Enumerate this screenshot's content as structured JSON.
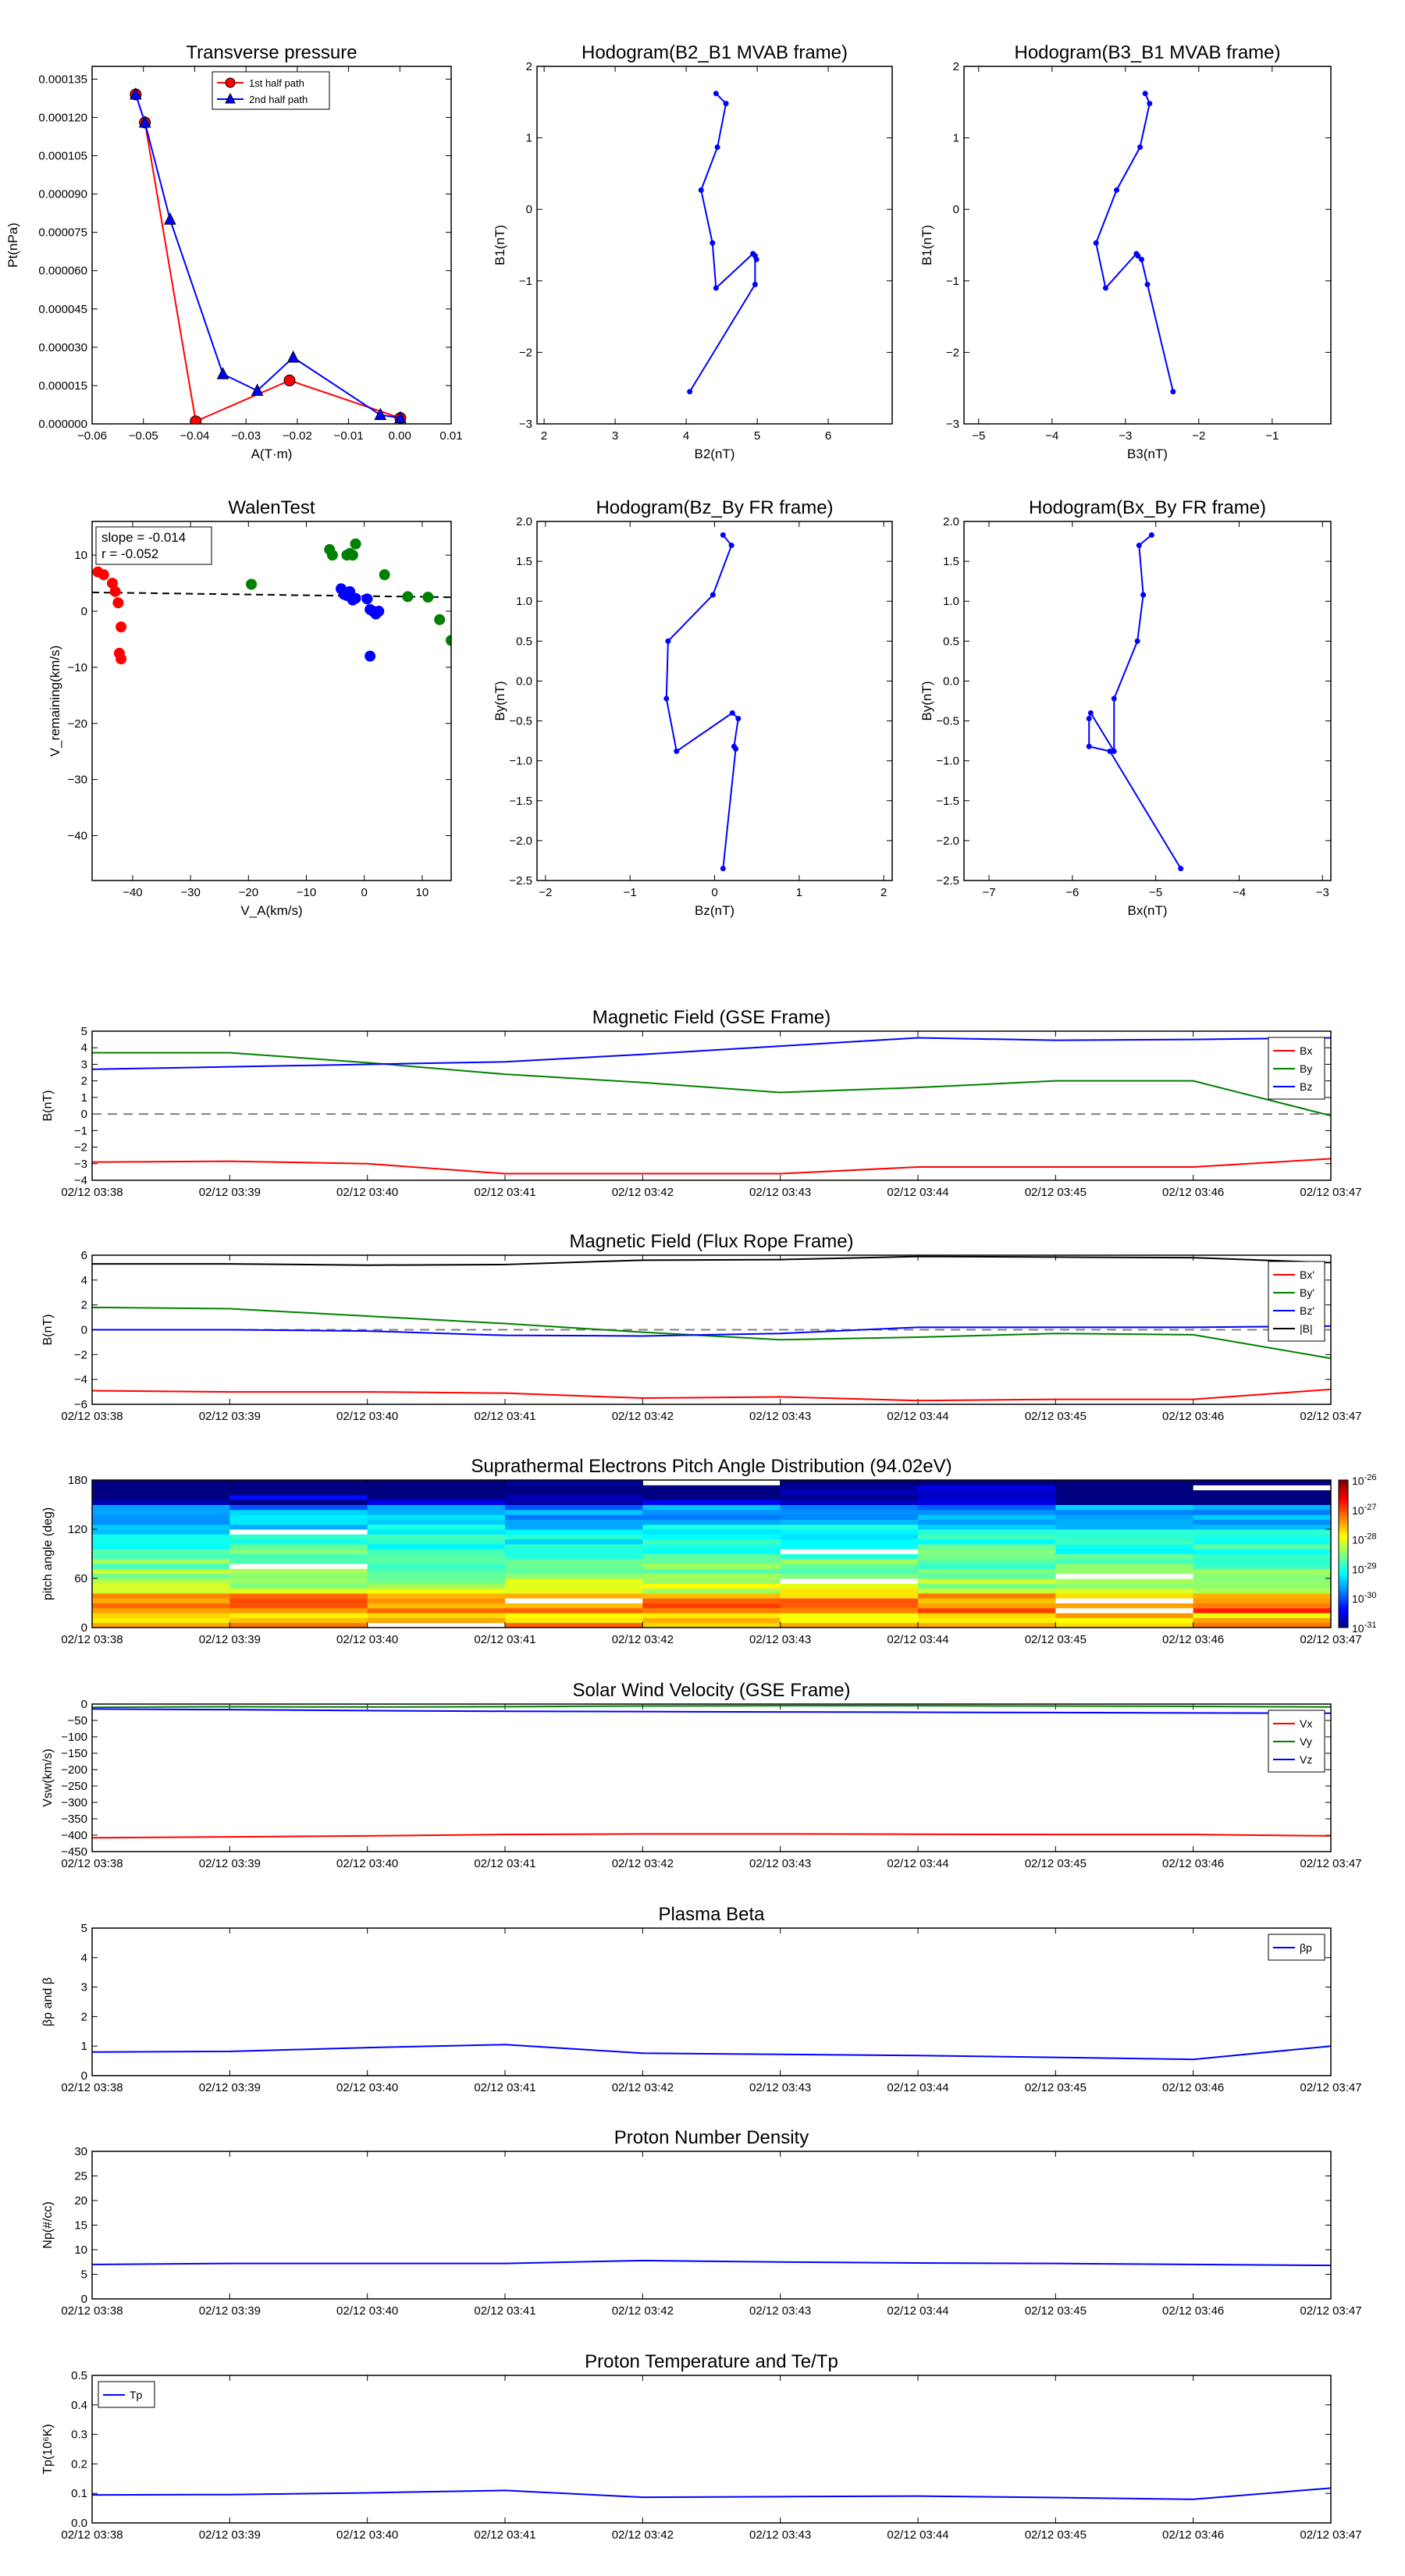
{
  "colors": {
    "red": "#ff0000",
    "green": "#008000",
    "blue": "#0000ff",
    "black": "#000000",
    "grey": "#808080"
  },
  "time_ticks": [
    "02/12 03:38",
    "02/12 03:39",
    "02/12 03:40",
    "02/12 03:41",
    "02/12 03:42",
    "02/12 03:43",
    "02/12 03:44",
    "02/12 03:45",
    "02/12 03:46",
    "02/12 03:47"
  ],
  "chart_data": [
    {
      "id": "pt",
      "type": "line",
      "title": "Transverse pressure",
      "xlabel": "A(T·m)",
      "ylabel": "Pt(nPa)",
      "xlim": [
        -0.06,
        0.01
      ],
      "ylim": [
        0,
        0.00014
      ],
      "xticks": [
        -0.06,
        -0.05,
        -0.04,
        -0.03,
        -0.02,
        -0.01,
        0.0,
        0.01
      ],
      "xtick_labels": [
        "−0.06",
        "−0.05",
        "−0.04",
        "−0.03",
        "−0.02",
        "−0.01",
        "0.00",
        "0.01"
      ],
      "yticks": [
        0,
        1.5e-05,
        3e-05,
        4.5e-05,
        6e-05,
        7.5e-05,
        9e-05,
        0.000105,
        0.00012,
        0.000135
      ],
      "ytick_labels": [
        "0.000000",
        "0.000015",
        "0.000030",
        "0.000045",
        "0.000060",
        "0.000075",
        "0.000090",
        "0.000105",
        "0.000120",
        "0.000135"
      ],
      "legend": "top-center",
      "series": [
        {
          "name": "1st half path",
          "color": "red",
          "marker": "circle",
          "x": [
            -0.0515,
            -0.0497,
            -0.0398,
            -0.0215,
            0.0001
          ],
          "y": [
            0.000129,
            0.000118,
            1e-06,
            1.7e-05,
            2.3e-06
          ]
        },
        {
          "name": "2nd half path",
          "color": "blue",
          "marker": "triangle",
          "x": [
            -0.0515,
            -0.0497,
            -0.0448,
            -0.0345,
            -0.0278,
            -0.0208,
            -0.0038,
            0.0001
          ],
          "y": [
            0.000129,
            0.000118,
            8e-05,
            1.95e-05,
            1.3e-05,
            2.6e-05,
            3.5e-06,
            2.3e-06
          ]
        }
      ]
    },
    {
      "id": "hodo1",
      "type": "line",
      "title": "Hodogram(B2_B1 MVAB frame)",
      "xlabel": "B2(nT)",
      "ylabel": "B1(nT)",
      "xlim": [
        1.9,
        6.9
      ],
      "ylim": [
        -3,
        2
      ],
      "xticks": [
        2,
        3,
        4,
        5,
        6
      ],
      "xtick_labels": [
        "2",
        "3",
        "4",
        "5",
        "6"
      ],
      "yticks": [
        -3,
        -2,
        -1,
        0,
        1,
        2
      ],
      "ytick_labels": [
        "−3",
        "−2",
        "−1",
        "0",
        "1",
        "2"
      ],
      "series": [
        {
          "color": "blue",
          "marker": "dot",
          "x": [
            4.05,
            4.97,
            4.97,
            4.99,
            4.94,
            4.42,
            4.37,
            4.21,
            4.44,
            4.56,
            4.42
          ],
          "y": [
            -2.55,
            -1.05,
            -0.65,
            -0.7,
            -0.62,
            -1.1,
            -0.47,
            0.27,
            0.87,
            1.48,
            1.62
          ]
        }
      ]
    },
    {
      "id": "hodo2",
      "type": "line",
      "title": "Hodogram(B3_B1 MVAB frame)",
      "xlabel": "B3(nT)",
      "ylabel": "B1(nT)",
      "xlim": [
        -5.2,
        -0.2
      ],
      "ylim": [
        -3,
        2
      ],
      "xticks": [
        -5,
        -4,
        -3,
        -2,
        -1
      ],
      "xtick_labels": [
        "−5",
        "−4",
        "−3",
        "−2",
        "−1"
      ],
      "yticks": [
        -3,
        -2,
        -1,
        0,
        1,
        2
      ],
      "ytick_labels": [
        "−3",
        "−2",
        "−1",
        "0",
        "1",
        "2"
      ],
      "series": [
        {
          "color": "blue",
          "marker": "dot",
          "x": [
            -2.35,
            -2.7,
            -2.78,
            -2.83,
            -2.85,
            -3.27,
            -3.4,
            -3.12,
            -2.8,
            -2.67,
            -2.73
          ],
          "y": [
            -2.55,
            -1.05,
            -0.7,
            -0.65,
            -0.62,
            -1.1,
            -0.47,
            0.27,
            0.87,
            1.48,
            1.62
          ]
        }
      ]
    },
    {
      "id": "walen",
      "type": "scatter",
      "title": "WalenTest",
      "xlabel": "V_A(km/s)",
      "ylabel": "V_remaining(km/s)",
      "xlim": [
        -47,
        15
      ],
      "ylim": [
        -48,
        16
      ],
      "xticks": [
        -40,
        -30,
        -20,
        -10,
        0,
        10
      ],
      "xtick_labels": [
        "−40",
        "−30",
        "−20",
        "−10",
        "0",
        "10"
      ],
      "yticks": [
        -40,
        -30,
        -20,
        -10,
        0,
        10
      ],
      "ytick_labels": [
        "−40",
        "−30",
        "−20",
        "−10",
        "0",
        "10"
      ],
      "annotation": [
        "slope = -0.014",
        "r = -0.052"
      ],
      "fit": {
        "slope": -0.014,
        "intercept": 2.7
      },
      "series": [
        {
          "color": "red",
          "x": [
            -46,
            -45,
            -43.5,
            -43,
            -42.5,
            -42,
            -42.3,
            -42
          ],
          "y": [
            7,
            6.5,
            5,
            3.5,
            1.5,
            -2.8,
            -7.5,
            -8.5
          ]
        },
        {
          "color": "green",
          "x": [
            -19.5,
            -6,
            -5.5,
            -3,
            -2.5,
            -2,
            -1.5,
            3.5,
            7.5,
            11,
            13,
            15
          ],
          "y": [
            4.8,
            11,
            10,
            10,
            10.3,
            10,
            12,
            6.5,
            2.6,
            2.5,
            -1.5,
            -5.2
          ]
        },
        {
          "color": "blue",
          "x": [
            -4,
            -3.5,
            -3,
            -2.5,
            -2,
            -1.5,
            0.5,
            1,
            1.5,
            2,
            2.5,
            1
          ],
          "y": [
            4,
            3,
            2.8,
            3.5,
            2,
            2.3,
            2.2,
            0.3,
            0,
            -0.5,
            0,
            -8
          ]
        }
      ]
    },
    {
      "id": "hodo3",
      "type": "line",
      "title": "Hodogram(Bz_By FR frame)",
      "xlabel": "Bz(nT)",
      "ylabel": "By(nT)",
      "xlim": [
        -2.1,
        2.1
      ],
      "ylim": [
        -2.5,
        2.0
      ],
      "xticks": [
        -2,
        -1,
        0,
        1,
        2
      ],
      "xtick_labels": [
        "−2",
        "−1",
        "0",
        "1",
        "2"
      ],
      "yticks": [
        -2.5,
        -2.0,
        -1.5,
        -1.0,
        -0.5,
        0.0,
        0.5,
        1.0,
        1.5,
        2.0
      ],
      "ytick_labels": [
        "−2.5",
        "−2.0",
        "−1.5",
        "−1.0",
        "−0.5",
        "0.0",
        "0.5",
        "1.0",
        "1.5",
        "2.0"
      ],
      "series": [
        {
          "color": "blue",
          "marker": "dot",
          "x": [
            0.1,
            0.25,
            0.23,
            0.28,
            0.21,
            -0.45,
            -0.57,
            -0.55,
            -0.02,
            0.2,
            0.1
          ],
          "y": [
            -2.35,
            -0.85,
            -0.82,
            -0.47,
            -0.4,
            -0.88,
            -0.22,
            0.5,
            1.08,
            1.7,
            1.83
          ]
        }
      ]
    },
    {
      "id": "hodo4",
      "type": "line",
      "title": "Hodogram(Bx_By FR frame)",
      "xlabel": "Bx(nT)",
      "ylabel": "By(nT)",
      "xlim": [
        -7.3,
        -2.9
      ],
      "ylim": [
        -2.5,
        2.0
      ],
      "xticks": [
        -7,
        -6,
        -5,
        -4,
        -3
      ],
      "xtick_labels": [
        "−7",
        "−6",
        "−5",
        "−4",
        "−3"
      ],
      "yticks": [
        -2.5,
        -2.0,
        -1.5,
        -1.0,
        -0.5,
        0.0,
        0.5,
        1.0,
        1.5,
        2.0
      ],
      "ytick_labels": [
        "−2.5",
        "−2.0",
        "−1.5",
        "−1.0",
        "−0.5",
        "0.0",
        "0.5",
        "1.0",
        "1.5",
        "2.0"
      ],
      "series": [
        {
          "color": "blue",
          "marker": "dot",
          "x": [
            -4.7,
            -5.55,
            -5.8,
            -5.8,
            -5.78,
            -5.5,
            -5.5,
            -5.22,
            -5.15,
            -5.2,
            -5.05
          ],
          "y": [
            -2.35,
            -0.88,
            -0.82,
            -0.47,
            -0.4,
            -0.88,
            -0.22,
            0.5,
            1.08,
            1.7,
            1.83
          ]
        }
      ]
    },
    {
      "id": "bgse",
      "type": "line",
      "title": "Magnetic Field (GSE Frame)",
      "ylabel": "B(nT)",
      "ylim": [
        -4,
        5
      ],
      "yticks": [
        -4,
        -3,
        -2,
        -1,
        0,
        1,
        2,
        3,
        4,
        5
      ],
      "ytick_labels": [
        "−4",
        "−3",
        "−2",
        "−1",
        "0",
        "1",
        "2",
        "3",
        "4",
        "5"
      ],
      "zero_line": true,
      "legend": "top-right",
      "series": [
        {
          "name": "Bx",
          "color": "red",
          "y": [
            -2.9,
            -2.85,
            -3.0,
            -3.6,
            -3.6,
            -3.6,
            -3.2,
            -3.2,
            -3.2,
            -2.7
          ]
        },
        {
          "name": "By",
          "color": "green",
          "y": [
            3.7,
            3.7,
            3.1,
            2.4,
            1.9,
            1.3,
            1.6,
            2.0,
            2.0,
            -0.1
          ]
        },
        {
          "name": "Bz",
          "color": "blue",
          "y": [
            2.7,
            2.85,
            3.0,
            3.15,
            3.6,
            4.1,
            4.6,
            4.45,
            4.5,
            4.6
          ]
        }
      ]
    },
    {
      "id": "bfr",
      "type": "line",
      "title": "Magnetic Field (Flux Rope Frame)",
      "ylabel": "B(nT)",
      "ylim": [
        -6,
        6
      ],
      "yticks": [
        -6,
        -4,
        -2,
        0,
        2,
        4,
        6
      ],
      "ytick_labels": [
        "−6",
        "−4",
        "−2",
        "0",
        "2",
        "4",
        "6"
      ],
      "zero_line": true,
      "legend": "top-right",
      "series": [
        {
          "name": "Bx'",
          "color": "red",
          "y": [
            -4.9,
            -5.0,
            -5.0,
            -5.1,
            -5.5,
            -5.4,
            -5.7,
            -5.6,
            -5.6,
            -4.8
          ]
        },
        {
          "name": "By'",
          "color": "green",
          "y": [
            1.8,
            1.7,
            1.1,
            0.5,
            -0.2,
            -0.8,
            -0.6,
            -0.3,
            -0.4,
            -2.3
          ]
        },
        {
          "name": "Bz'",
          "color": "blue",
          "y": [
            0.0,
            0.0,
            -0.1,
            -0.45,
            -0.5,
            -0.3,
            0.2,
            0.2,
            0.2,
            0.3
          ]
        },
        {
          "name": "|B|",
          "color": "black",
          "y": [
            5.3,
            5.3,
            5.2,
            5.25,
            5.6,
            5.65,
            5.9,
            5.85,
            5.8,
            5.4
          ]
        }
      ]
    },
    {
      "id": "pad",
      "type": "heatmap",
      "title": "Suprathermal Electrons Pitch Angle Distribution (94.02eV)",
      "ylabel": "pitch angle (deg)",
      "ylim": [
        0,
        180
      ],
      "yticks": [
        0,
        60,
        120,
        180
      ],
      "ytick_labels": [
        "0",
        "60",
        "120",
        "180"
      ],
      "colorbar_labels": [
        "10^-26",
        "10^-27",
        "10^-28",
        "10^-29",
        "10^-30",
        "10^-31"
      ],
      "log10_range": [
        -31,
        -26
      ],
      "pitch_bins": 30,
      "time_bins": 9
    },
    {
      "id": "vsw",
      "type": "line",
      "title": "Solar Wind Velocity (GSE Frame)",
      "ylabel": "Vsw(km/s)",
      "ylim": [
        -450,
        0
      ],
      "yticks": [
        -450,
        -400,
        -350,
        -300,
        -250,
        -200,
        -150,
        -100,
        -50,
        0
      ],
      "ytick_labels": [
        "−450",
        "−400",
        "−350",
        "−300",
        "−250",
        "−200",
        "−150",
        "−100",
        "−50",
        "0"
      ],
      "legend": "top-right",
      "series": [
        {
          "name": "Vx",
          "color": "red",
          "y": [
            -408,
            -405,
            -402,
            -398,
            -396,
            -396,
            -397,
            -398,
            -398,
            -402
          ]
        },
        {
          "name": "Vy",
          "color": "green",
          "y": [
            -10,
            -8,
            -9,
            -8,
            -6,
            -5,
            -5,
            -6,
            -7,
            -9
          ]
        },
        {
          "name": "Vz",
          "color": "blue",
          "y": [
            -15,
            -17,
            -20,
            -22,
            -23,
            -24,
            -25,
            -26,
            -27,
            -28
          ]
        }
      ]
    },
    {
      "id": "beta",
      "type": "line",
      "title": "Plasma Beta",
      "ylabel": "βp and β",
      "ylim": [
        0,
        5
      ],
      "yticks": [
        0,
        1,
        2,
        3,
        4,
        5
      ],
      "ytick_labels": [
        "0",
        "1",
        "2",
        "3",
        "4",
        "5"
      ],
      "legend": "top-right",
      "series": [
        {
          "name": "βp",
          "color": "blue",
          "y": [
            0.8,
            0.82,
            0.95,
            1.05,
            0.76,
            0.72,
            0.68,
            0.62,
            0.55,
            1.0
          ]
        }
      ]
    },
    {
      "id": "np",
      "type": "line",
      "title": "Proton Number Density",
      "ylabel": "Np(#/cc)",
      "ylim": [
        0,
        30
      ],
      "yticks": [
        0,
        5,
        10,
        15,
        20,
        25,
        30
      ],
      "ytick_labels": [
        "0",
        "5",
        "10",
        "15",
        "20",
        "25",
        "30"
      ],
      "series": [
        {
          "color": "blue",
          "y": [
            7.0,
            7.2,
            7.2,
            7.2,
            7.8,
            7.5,
            7.3,
            7.2,
            7.0,
            6.8
          ]
        }
      ]
    },
    {
      "id": "tp",
      "type": "line",
      "title": "Proton Temperature and Te/Tp",
      "ylabel": "Tp(10⁶K)",
      "ylim": [
        0,
        0.5
      ],
      "yticks": [
        0,
        0.1,
        0.2,
        0.3,
        0.4,
        0.5
      ],
      "ytick_labels": [
        "0.0",
        "0.1",
        "0.2",
        "0.3",
        "0.4",
        "0.5"
      ],
      "legend": "top-left",
      "series": [
        {
          "name": "Tp",
          "color": "blue",
          "y": [
            0.095,
            0.096,
            0.102,
            0.11,
            0.087,
            0.089,
            0.091,
            0.086,
            0.08,
            0.118
          ]
        }
      ]
    }
  ]
}
